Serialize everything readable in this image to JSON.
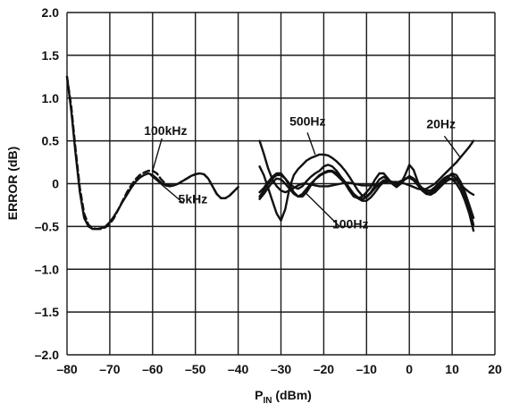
{
  "chart_data": {
    "type": "line",
    "xlabel_main": "P",
    "xlabel_sub": "IN",
    "xlabel_unit": " (dBm)",
    "ylabel": "ERROR (dB)",
    "xlim": [
      -80,
      20
    ],
    "ylim": [
      -2.0,
      2.0
    ],
    "xticks": [
      -80,
      -70,
      -60,
      -50,
      -40,
      -30,
      -20,
      -10,
      0,
      10,
      20
    ],
    "xtick_labels": [
      "–80",
      "–70",
      "–60",
      "–50",
      "–40",
      "–30",
      "–20",
      "–10",
      "0",
      "10",
      "20"
    ],
    "yticks": [
      2.0,
      1.5,
      1.0,
      0.5,
      0,
      -0.5,
      -1.0,
      -1.5,
      -2.0
    ],
    "ytick_labels": [
      "2.0",
      "1.5",
      "1.0",
      "0.5",
      "0",
      "–0.5",
      "–1.0",
      "–1.5",
      "–2.0"
    ],
    "grid": true,
    "series": [
      {
        "name": "100kHz",
        "style": "dashed",
        "x": [
          -80,
          -79,
          -78,
          -77,
          -76,
          -75,
          -74,
          -73,
          -72,
          -71,
          -70,
          -69,
          -68,
          -67,
          -66,
          -65,
          -64,
          -63,
          -62,
          -61,
          -60,
          -59,
          -58,
          -57,
          -56,
          -55,
          -54,
          -53,
          -52,
          -51,
          -50,
          -49,
          -48,
          -47,
          -46,
          -45,
          -44,
          -43,
          -42,
          -41,
          -40
        ],
        "y": [
          1.25,
          0.9,
          0.4,
          -0.05,
          -0.35,
          -0.48,
          -0.52,
          -0.53,
          -0.53,
          -0.51,
          -0.47,
          -0.4,
          -0.3,
          -0.2,
          -0.1,
          -0.02,
          0.05,
          0.1,
          0.13,
          0.15,
          0.15,
          0.12,
          0.05,
          0.0,
          -0.02,
          -0.02,
          0.0,
          0.03,
          0.06,
          0.09,
          0.11,
          0.12,
          0.11,
          0.06,
          -0.03,
          -0.12,
          -0.17,
          -0.17,
          -0.14,
          -0.09,
          -0.04
        ]
      },
      {
        "name": "5kHz",
        "style": "solid",
        "x": [
          -80,
          -79,
          -78,
          -77,
          -76,
          -75,
          -74,
          -73,
          -72,
          -71,
          -70,
          -69,
          -68,
          -67,
          -66,
          -65,
          -64,
          -63,
          -62,
          -61,
          -60,
          -59,
          -58,
          -57,
          -56,
          -55,
          -54,
          -53,
          -52,
          -51,
          -50,
          -49,
          -48,
          -47,
          -46,
          -45,
          -44,
          -43,
          -42,
          -41,
          -40
        ],
        "y": [
          1.25,
          0.85,
          0.35,
          -0.1,
          -0.4,
          -0.5,
          -0.53,
          -0.53,
          -0.52,
          -0.5,
          -0.45,
          -0.38,
          -0.3,
          -0.21,
          -0.13,
          -0.05,
          0.02,
          0.07,
          0.1,
          0.12,
          0.1,
          0.06,
          0.01,
          -0.02,
          -0.03,
          -0.02,
          0.0,
          0.03,
          0.06,
          0.09,
          0.11,
          0.12,
          0.11,
          0.06,
          -0.03,
          -0.12,
          -0.17,
          -0.17,
          -0.14,
          -0.09,
          -0.04
        ]
      },
      {
        "name": "500Hz",
        "style": "solid",
        "x": [
          -35,
          -34,
          -33,
          -32,
          -31,
          -30,
          -29,
          -28,
          -27,
          -26,
          -25,
          -24,
          -23,
          -22,
          -21,
          -20,
          -19,
          -18,
          -17,
          -16,
          -15,
          -14,
          -13,
          -12,
          -11,
          -10,
          -9,
          -8,
          -7,
          -6,
          -5,
          -4,
          -3,
          -2,
          -1,
          0,
          1,
          2,
          3,
          4,
          5,
          6,
          7,
          8,
          9,
          10,
          11,
          12,
          13,
          14,
          15
        ],
        "y": [
          0.2,
          0.1,
          -0.05,
          -0.2,
          -0.35,
          -0.43,
          -0.3,
          -0.05,
          0.1,
          0.17,
          0.22,
          0.27,
          0.3,
          0.32,
          0.34,
          0.34,
          0.33,
          0.3,
          0.26,
          0.21,
          0.15,
          0.08,
          0.0,
          -0.08,
          -0.14,
          -0.15,
          -0.1,
          -0.02,
          0.05,
          0.08,
          0.05,
          0.0,
          -0.02,
          0.0,
          0.05,
          0.09,
          0.06,
          0.0,
          -0.05,
          -0.08,
          -0.08,
          -0.04,
          0.01,
          0.06,
          0.09,
          0.1,
          0.06,
          -0.03,
          -0.15,
          -0.3,
          -0.48
        ]
      },
      {
        "name": "20Hz",
        "style": "solid",
        "x": [
          -35,
          -34,
          -33,
          -32,
          -31,
          -30,
          -29,
          -28,
          -27,
          -26,
          -25,
          -24,
          -23,
          -22,
          -21,
          -20,
          -19,
          -18,
          -17,
          -16,
          -15,
          -14,
          -13,
          -12,
          -11,
          -10,
          -9,
          -8,
          -7,
          -6,
          -5,
          -4,
          -3,
          -2,
          -1,
          0,
          1,
          2,
          3,
          4,
          5,
          6,
          7,
          8,
          9,
          10,
          11,
          12,
          13,
          14,
          15
        ],
        "y": [
          0.5,
          0.35,
          0.18,
          0.05,
          -0.03,
          -0.08,
          -0.1,
          -0.08,
          -0.05,
          -0.02,
          0.0,
          0.0,
          -0.01,
          -0.02,
          -0.03,
          -0.03,
          -0.03,
          -0.02,
          -0.01,
          0.0,
          0.01,
          0.01,
          0.0,
          -0.01,
          -0.02,
          -0.02,
          -0.02,
          -0.01,
          0.0,
          0.01,
          0.02,
          0.02,
          0.02,
          0.01,
          0.0,
          -0.02,
          -0.04,
          -0.06,
          -0.07,
          -0.06,
          -0.03,
          0.0,
          0.05,
          0.1,
          0.15,
          0.2,
          0.25,
          0.31,
          0.37,
          0.43,
          0.5
        ]
      },
      {
        "name": "100Hz",
        "style": "solid",
        "x": [
          -35,
          -34,
          -33,
          -32,
          -31,
          -30,
          -29,
          -28,
          -27,
          -26,
          -25,
          -24,
          -23,
          -22,
          -21,
          -20,
          -19,
          -18,
          -17,
          -16,
          -15,
          -14,
          -13,
          -12,
          -11,
          -10,
          -9,
          -8,
          -7,
          -6,
          -5,
          -4,
          -3,
          -2,
          -1,
          0,
          1,
          2,
          3,
          4,
          5,
          6,
          7,
          8,
          9,
          10,
          11,
          12,
          13,
          14,
          15
        ],
        "y": [
          -0.15,
          -0.08,
          0.0,
          0.06,
          0.1,
          0.1,
          0.06,
          -0.02,
          -0.1,
          -0.15,
          -0.15,
          -0.1,
          -0.02,
          0.05,
          0.1,
          0.13,
          0.15,
          0.15,
          0.12,
          0.08,
          0.02,
          -0.05,
          -0.12,
          -0.17,
          -0.2,
          -0.2,
          -0.16,
          -0.1,
          -0.03,
          0.02,
          0.03,
          0.02,
          0.0,
          0.02,
          0.05,
          0.08,
          0.06,
          0.0,
          -0.06,
          -0.1,
          -0.11,
          -0.08,
          -0.03,
          0.02,
          0.08,
          0.12,
          0.1,
          0.02,
          -0.1,
          -0.25,
          -0.4
        ]
      },
      {
        "name": "",
        "style": "solid",
        "x": [
          -35,
          -34,
          -33,
          -32,
          -31,
          -30,
          -29,
          -28,
          -27,
          -26,
          -25,
          -24,
          -23,
          -22,
          -21,
          -20,
          -19,
          -18,
          -17,
          -16,
          -15,
          -14,
          -13,
          -12,
          -11,
          -10,
          -9,
          -8,
          -7,
          -6,
          -5,
          -4,
          -3,
          -2,
          -1,
          0,
          1,
          2,
          3,
          4,
          5,
          6,
          7,
          8,
          9,
          10,
          11,
          12,
          13,
          14,
          15
        ],
        "y": [
          -0.1,
          -0.05,
          0.02,
          0.08,
          0.12,
          0.12,
          0.06,
          0.0,
          -0.04,
          -0.06,
          -0.03,
          0.03,
          0.08,
          0.12,
          0.15,
          0.2,
          0.22,
          0.2,
          0.15,
          0.08,
          0.0,
          -0.08,
          -0.15,
          -0.17,
          -0.15,
          -0.1,
          -0.04,
          0.05,
          0.12,
          0.12,
          0.06,
          0.0,
          -0.04,
          0.0,
          0.1,
          0.22,
          0.16,
          0.02,
          -0.08,
          -0.12,
          -0.1,
          -0.05,
          0.0,
          0.04,
          0.07,
          0.05,
          0.0,
          -0.08,
          -0.2,
          -0.35,
          -0.55
        ]
      },
      {
        "name": "",
        "style": "solid",
        "x": [
          -35,
          -34,
          -33,
          -32,
          -31,
          -30,
          -29,
          -28,
          -27,
          -26,
          -25,
          -24,
          -23,
          -22,
          -21,
          -20,
          -19,
          -18,
          -17,
          -16,
          -15,
          -14,
          -13,
          -12,
          -11,
          -10,
          -9,
          -8,
          -7,
          -6,
          -5,
          -4,
          -3,
          -2,
          -1,
          0,
          1,
          2,
          3,
          4,
          5,
          6,
          7,
          8,
          9,
          10,
          11,
          12,
          13,
          14,
          15
        ],
        "y": [
          -0.18,
          -0.12,
          -0.05,
          0.02,
          0.06,
          0.05,
          0.0,
          -0.06,
          -0.12,
          -0.15,
          -0.12,
          -0.06,
          0.0,
          0.05,
          0.09,
          0.12,
          0.14,
          0.14,
          0.1,
          0.05,
          0.0,
          -0.06,
          -0.12,
          -0.16,
          -0.18,
          -0.16,
          -0.11,
          -0.05,
          0.0,
          0.04,
          0.04,
          0.02,
          0.01,
          0.03,
          0.06,
          0.07,
          0.04,
          -0.02,
          -0.08,
          -0.12,
          -0.13,
          -0.1,
          -0.05,
          0.0,
          0.04,
          0.06,
          0.04,
          -0.01,
          -0.06,
          -0.1,
          -0.13
        ]
      }
    ],
    "annotations": [
      {
        "text": "100kHz",
        "x": -62,
        "y": 0.57
      },
      {
        "text": "5kHz",
        "x": -54,
        "y": -0.23
      },
      {
        "text": "500Hz",
        "x": -28,
        "y": 0.68
      },
      {
        "text": "20Hz",
        "x": 4,
        "y": 0.65
      },
      {
        "text": "100Hz",
        "x": -18,
        "y": -0.52
      }
    ]
  }
}
